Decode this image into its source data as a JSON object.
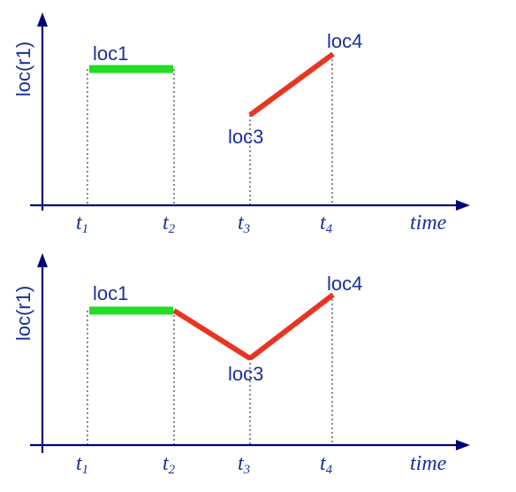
{
  "panels": [
    {
      "id": "top",
      "ylabel": "loc(r1)",
      "xlabel": "time",
      "ticks": [
        {
          "base": "t",
          "sub": "1"
        },
        {
          "base": "t",
          "sub": "2"
        },
        {
          "base": "t",
          "sub": "3"
        },
        {
          "base": "t",
          "sub": "4"
        }
      ],
      "labels": [
        "loc1",
        "loc3",
        "loc4"
      ],
      "colors": {
        "stationary": "#22dd22",
        "moving": "#ee3322",
        "axis": "#00007a",
        "text": "#1a2f9a"
      }
    },
    {
      "id": "bottom",
      "ylabel": "loc(r1)",
      "xlabel": "time",
      "ticks": [
        {
          "base": "t",
          "sub": "1"
        },
        {
          "base": "t",
          "sub": "2"
        },
        {
          "base": "t",
          "sub": "3"
        },
        {
          "base": "t",
          "sub": "4"
        }
      ],
      "labels": [
        "loc1",
        "loc3",
        "loc4"
      ],
      "colors": {
        "stationary": "#22dd22",
        "moving": "#ee3322",
        "axis": "#00007a",
        "text": "#1a2f9a"
      }
    }
  ]
}
